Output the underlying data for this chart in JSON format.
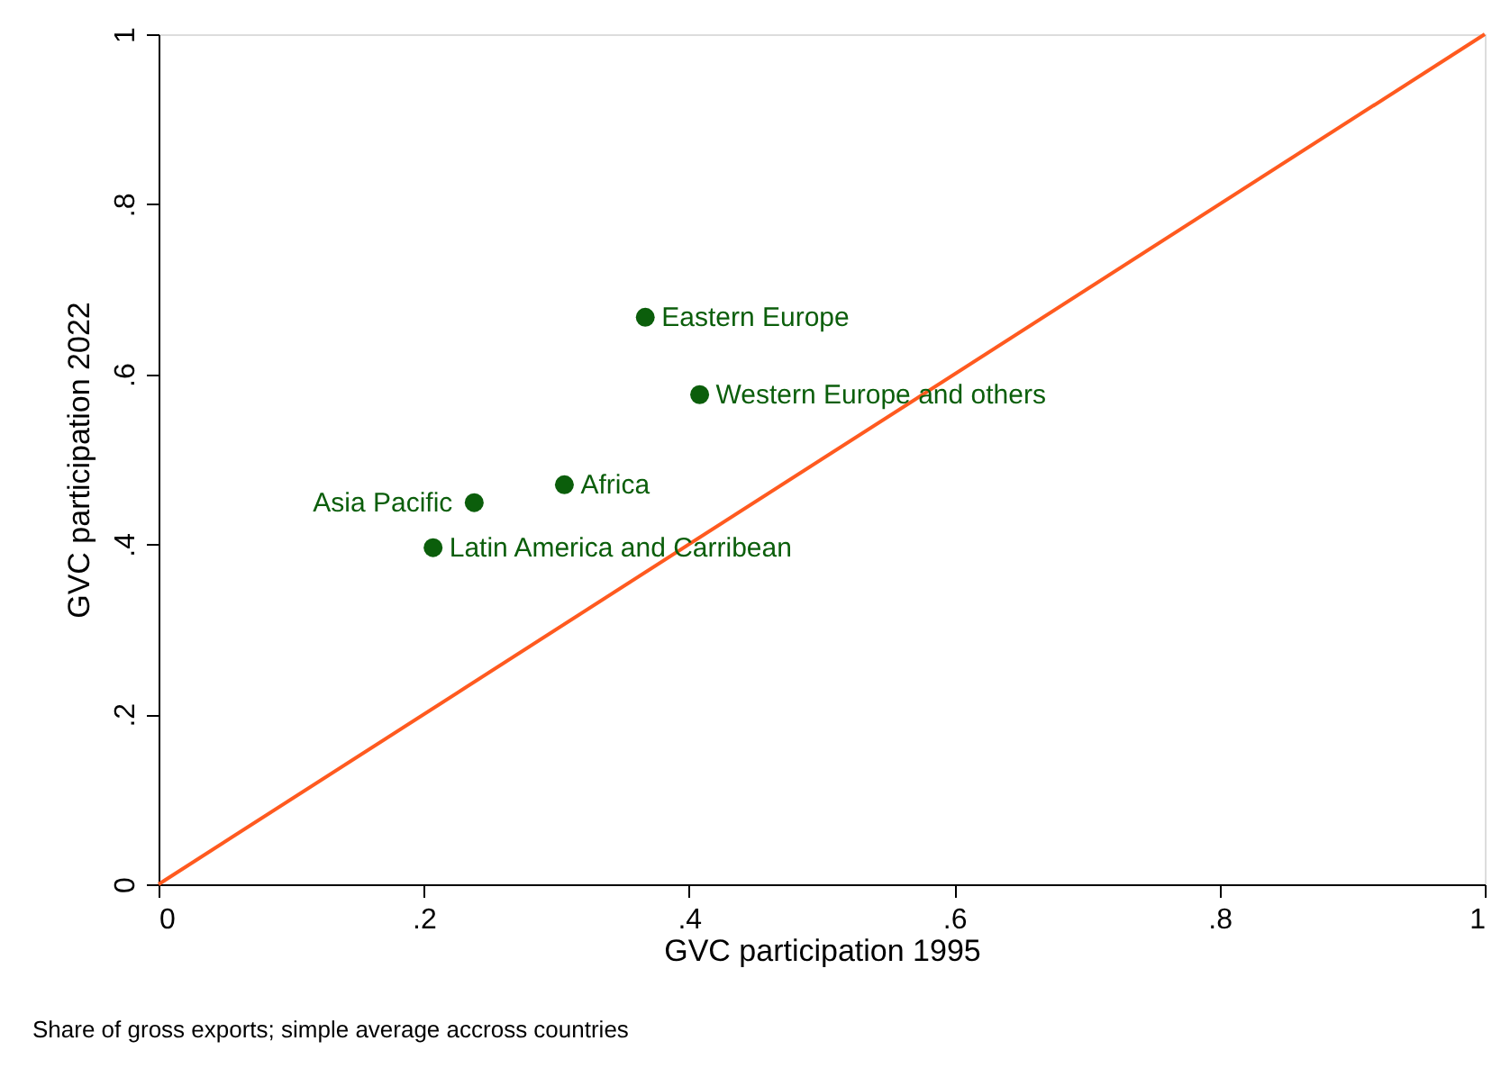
{
  "chart_data": {
    "type": "scatter",
    "xlabel": "GVC participation 1995",
    "ylabel": "GVC participation 2022",
    "xlim": [
      0,
      1
    ],
    "ylim": [
      0,
      1
    ],
    "xticks": [
      0,
      {
        "value": 0.2,
        "label": ".2"
      },
      {
        "value": 0.4,
        "label": ".4"
      },
      {
        "value": 0.6,
        "label": ".6"
      },
      {
        "value": 0.8,
        "label": ".8"
      },
      1
    ],
    "yticks": [
      0,
      {
        "value": 0.2,
        "label": ".2"
      },
      {
        "value": 0.4,
        "label": ".4"
      },
      {
        "value": 0.6,
        "label": ".6"
      },
      {
        "value": 0.8,
        "label": ".8"
      },
      1
    ],
    "grid": false,
    "series": [
      {
        "marker": "circle",
        "color": "#0b5e0b",
        "x": [
          0.367,
          0.408,
          0.306,
          0.238,
          0.207
        ],
        "values": [
          0.667,
          0.576,
          0.47,
          0.449,
          0.396
        ]
      },
      {
        "type": "line",
        "color": "#ff5a1f",
        "x": [
          0,
          1
        ],
        "values": [
          0,
          1
        ]
      }
    ],
    "annotations": [
      {
        "text": "Eastern Europe",
        "x": 0.367,
        "y": 0.667
      },
      {
        "text": "Western Europe and others",
        "x": 0.408,
        "y": 0.576
      },
      {
        "text": "Africa",
        "x": 0.306,
        "y": 0.47
      },
      {
        "text": "Asia Pacific",
        "x": 0.238,
        "y": 0.449
      },
      {
        "text": "Latin America and Carribean",
        "x": 0.207,
        "y": 0.396
      },
      "Share of gross exports; simple average accross countries"
    ]
  }
}
